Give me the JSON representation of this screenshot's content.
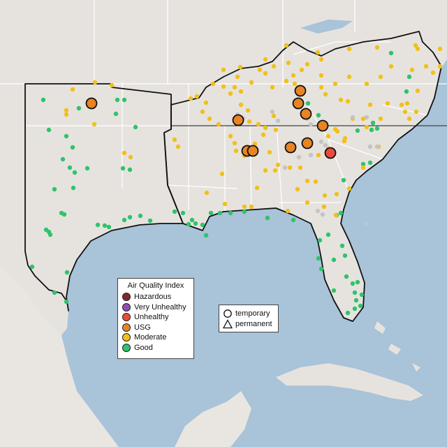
{
  "map": {
    "colors": {
      "water": "#a9c3d8",
      "land": "#e6e3df",
      "region_border": "#111111",
      "state_border": "#ffffff"
    }
  },
  "legend": {
    "title": "Air Quality Index",
    "categories": [
      {
        "label": "Hazardous",
        "color": "#7e2b2b"
      },
      {
        "label": "Very Unhealthy",
        "color": "#8f4fb2"
      },
      {
        "label": "Unhealthy",
        "color": "#e94b3c"
      },
      {
        "label": "USG",
        "color": "#e88424"
      },
      {
        "label": "Moderate",
        "color": "#f2c018"
      },
      {
        "label": "Good",
        "color": "#2fc36b"
      }
    ]
  },
  "monitor_types": {
    "items": [
      {
        "label": "temporary",
        "icon": "circle-icon"
      },
      {
        "label": "permanent",
        "icon": "triangle-icon"
      }
    ]
  }
}
